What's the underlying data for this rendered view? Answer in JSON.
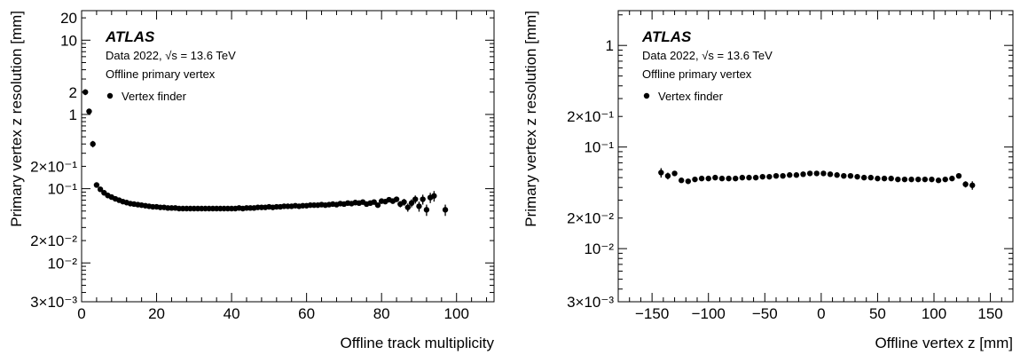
{
  "chart_data": [
    {
      "type": "scatter",
      "scale_y": "log",
      "xlim": [
        0,
        110
      ],
      "ylim": [
        0.003,
        25
      ],
      "xlabel": "Offline track multiplicity",
      "ylabel": "Primary vertex z resolution [mm]",
      "x_ticks": [
        {
          "value": 0,
          "label": "0"
        },
        {
          "value": 20,
          "label": "20"
        },
        {
          "value": 40,
          "label": "40"
        },
        {
          "value": 60,
          "label": "60"
        },
        {
          "value": 80,
          "label": "80"
        },
        {
          "value": 100,
          "label": "100"
        }
      ],
      "y_ticks": [
        {
          "value": 0.003,
          "label": "3×10⁻³"
        },
        {
          "value": 0.01,
          "label": "10⁻²"
        },
        {
          "value": 0.02,
          "label": "2×10⁻²"
        },
        {
          "value": 0.1,
          "label": "10⁻¹"
        },
        {
          "value": 0.2,
          "label": "2×10⁻¹"
        },
        {
          "value": 1,
          "label": "1"
        },
        {
          "value": 2,
          "label": "2"
        },
        {
          "value": 10,
          "label": "10"
        },
        {
          "value": 20,
          "label": "20"
        }
      ],
      "annotations": {
        "experiment": "ATLAS",
        "energy_line": "Data 2022, √s = 13.6 TeV",
        "selection": "Offline primary vertex"
      },
      "legend_position": "top-left",
      "series": [
        {
          "name": "Vertex finder",
          "points": [
            {
              "x": 1,
              "y": 2.0,
              "err": 0.18
            },
            {
              "x": 2,
              "y": 1.1,
              "err": 0.08
            },
            {
              "x": 3,
              "y": 0.4,
              "err": 0.04
            },
            {
              "x": 4,
              "y": 0.112,
              "err": 0.006
            },
            {
              "x": 5,
              "y": 0.098,
              "err": 0.005
            },
            {
              "x": 6,
              "y": 0.088,
              "err": 0.004
            },
            {
              "x": 7,
              "y": 0.081,
              "err": 0.003
            },
            {
              "x": 8,
              "y": 0.077,
              "err": 0.003
            },
            {
              "x": 9,
              "y": 0.073,
              "err": 0.002
            },
            {
              "x": 10,
              "y": 0.07,
              "err": 0.002
            },
            {
              "x": 11,
              "y": 0.067,
              "err": 0.002
            },
            {
              "x": 12,
              "y": 0.065,
              "err": 0.002
            },
            {
              "x": 13,
              "y": 0.063,
              "err": 0.002
            },
            {
              "x": 14,
              "y": 0.062,
              "err": 0.002
            },
            {
              "x": 15,
              "y": 0.061,
              "err": 0.002
            },
            {
              "x": 16,
              "y": 0.06,
              "err": 0.002
            },
            {
              "x": 17,
              "y": 0.059,
              "err": 0.002
            },
            {
              "x": 18,
              "y": 0.058,
              "err": 0.002
            },
            {
              "x": 19,
              "y": 0.057,
              "err": 0.002
            },
            {
              "x": 20,
              "y": 0.057,
              "err": 0.002
            },
            {
              "x": 21,
              "y": 0.056,
              "err": 0.002
            },
            {
              "x": 22,
              "y": 0.056,
              "err": 0.002
            },
            {
              "x": 23,
              "y": 0.055,
              "err": 0.002
            },
            {
              "x": 24,
              "y": 0.055,
              "err": 0.002
            },
            {
              "x": 25,
              "y": 0.055,
              "err": 0.002
            },
            {
              "x": 26,
              "y": 0.054,
              "err": 0.002
            },
            {
              "x": 27,
              "y": 0.054,
              "err": 0.002
            },
            {
              "x": 28,
              "y": 0.054,
              "err": 0.002
            },
            {
              "x": 29,
              "y": 0.054,
              "err": 0.002
            },
            {
              "x": 30,
              "y": 0.054,
              "err": 0.002
            },
            {
              "x": 31,
              "y": 0.054,
              "err": 0.002
            },
            {
              "x": 32,
              "y": 0.054,
              "err": 0.002
            },
            {
              "x": 33,
              "y": 0.054,
              "err": 0.002
            },
            {
              "x": 34,
              "y": 0.054,
              "err": 0.002
            },
            {
              "x": 35,
              "y": 0.054,
              "err": 0.002
            },
            {
              "x": 36,
              "y": 0.054,
              "err": 0.002
            },
            {
              "x": 37,
              "y": 0.054,
              "err": 0.002
            },
            {
              "x": 38,
              "y": 0.054,
              "err": 0.002
            },
            {
              "x": 39,
              "y": 0.054,
              "err": 0.002
            },
            {
              "x": 40,
              "y": 0.054,
              "err": 0.002
            },
            {
              "x": 41,
              "y": 0.054,
              "err": 0.002
            },
            {
              "x": 42,
              "y": 0.055,
              "err": 0.002
            },
            {
              "x": 43,
              "y": 0.054,
              "err": 0.002
            },
            {
              "x": 44,
              "y": 0.055,
              "err": 0.002
            },
            {
              "x": 45,
              "y": 0.055,
              "err": 0.002
            },
            {
              "x": 46,
              "y": 0.055,
              "err": 0.002
            },
            {
              "x": 47,
              "y": 0.056,
              "err": 0.002
            },
            {
              "x": 48,
              "y": 0.056,
              "err": 0.002
            },
            {
              "x": 49,
              "y": 0.056,
              "err": 0.002
            },
            {
              "x": 50,
              "y": 0.057,
              "err": 0.002
            },
            {
              "x": 51,
              "y": 0.056,
              "err": 0.002
            },
            {
              "x": 52,
              "y": 0.057,
              "err": 0.002
            },
            {
              "x": 53,
              "y": 0.057,
              "err": 0.002
            },
            {
              "x": 54,
              "y": 0.058,
              "err": 0.002
            },
            {
              "x": 55,
              "y": 0.058,
              "err": 0.002
            },
            {
              "x": 56,
              "y": 0.058,
              "err": 0.002
            },
            {
              "x": 57,
              "y": 0.059,
              "err": 0.002
            },
            {
              "x": 58,
              "y": 0.058,
              "err": 0.002
            },
            {
              "x": 59,
              "y": 0.059,
              "err": 0.002
            },
            {
              "x": 60,
              "y": 0.059,
              "err": 0.002
            },
            {
              "x": 61,
              "y": 0.06,
              "err": 0.002
            },
            {
              "x": 62,
              "y": 0.06,
              "err": 0.002
            },
            {
              "x": 63,
              "y": 0.06,
              "err": 0.002
            },
            {
              "x": 64,
              "y": 0.061,
              "err": 0.002
            },
            {
              "x": 65,
              "y": 0.06,
              "err": 0.002
            },
            {
              "x": 66,
              "y": 0.061,
              "err": 0.002
            },
            {
              "x": 67,
              "y": 0.062,
              "err": 0.002
            },
            {
              "x": 68,
              "y": 0.061,
              "err": 0.002
            },
            {
              "x": 69,
              "y": 0.063,
              "err": 0.002
            },
            {
              "x": 70,
              "y": 0.062,
              "err": 0.002
            },
            {
              "x": 71,
              "y": 0.064,
              "err": 0.003
            },
            {
              "x": 72,
              "y": 0.063,
              "err": 0.003
            },
            {
              "x": 73,
              "y": 0.065,
              "err": 0.003
            },
            {
              "x": 74,
              "y": 0.064,
              "err": 0.003
            },
            {
              "x": 75,
              "y": 0.066,
              "err": 0.003
            },
            {
              "x": 76,
              "y": 0.062,
              "err": 0.003
            },
            {
              "x": 77,
              "y": 0.064,
              "err": 0.003
            },
            {
              "x": 78,
              "y": 0.066,
              "err": 0.003
            },
            {
              "x": 79,
              "y": 0.06,
              "err": 0.004
            },
            {
              "x": 80,
              "y": 0.068,
              "err": 0.004
            },
            {
              "x": 81,
              "y": 0.067,
              "err": 0.004
            },
            {
              "x": 82,
              "y": 0.071,
              "err": 0.005
            },
            {
              "x": 83,
              "y": 0.068,
              "err": 0.005
            },
            {
              "x": 84,
              "y": 0.072,
              "err": 0.006
            },
            {
              "x": 85,
              "y": 0.062,
              "err": 0.006
            },
            {
              "x": 86,
              "y": 0.066,
              "err": 0.007
            },
            {
              "x": 87,
              "y": 0.056,
              "err": 0.007
            },
            {
              "x": 88,
              "y": 0.064,
              "err": 0.008
            },
            {
              "x": 89,
              "y": 0.072,
              "err": 0.009
            },
            {
              "x": 90,
              "y": 0.058,
              "err": 0.009
            },
            {
              "x": 91,
              "y": 0.072,
              "err": 0.011
            },
            {
              "x": 92,
              "y": 0.052,
              "err": 0.009
            },
            {
              "x": 93,
              "y": 0.076,
              "err": 0.012
            },
            {
              "x": 94,
              "y": 0.08,
              "err": 0.013
            },
            {
              "x": 97,
              "y": 0.052,
              "err": 0.009
            }
          ]
        }
      ]
    },
    {
      "type": "scatter",
      "scale_y": "log",
      "xlim": [
        -180,
        170
      ],
      "ylim": [
        0.003,
        2.2
      ],
      "xlabel": "Offline vertex z [mm]",
      "ylabel": "Primary vertex z resolution [mm]",
      "x_ticks": [
        {
          "value": -150,
          "label": "−150"
        },
        {
          "value": -100,
          "label": "−100"
        },
        {
          "value": -50,
          "label": "−50"
        },
        {
          "value": 0,
          "label": "0"
        },
        {
          "value": 50,
          "label": "50"
        },
        {
          "value": 100,
          "label": "100"
        },
        {
          "value": 150,
          "label": "150"
        }
      ],
      "y_ticks": [
        {
          "value": 0.003,
          "label": "3×10⁻³"
        },
        {
          "value": 0.01,
          "label": "10⁻²"
        },
        {
          "value": 0.02,
          "label": "2×10⁻²"
        },
        {
          "value": 0.1,
          "label": "10⁻¹"
        },
        {
          "value": 0.2,
          "label": "2×10⁻¹"
        },
        {
          "value": 1,
          "label": "1"
        }
      ],
      "annotations": {
        "experiment": "ATLAS",
        "energy_line": "Data 2022, √s = 13.6 TeV",
        "selection": "Offline primary vertex"
      },
      "legend_position": "top-left",
      "series": [
        {
          "name": "Vertex finder",
          "points": [
            {
              "x": -142,
              "y": 0.056,
              "err": 0.006
            },
            {
              "x": -136,
              "y": 0.052,
              "err": 0.004
            },
            {
              "x": -130,
              "y": 0.055,
              "err": 0.003
            },
            {
              "x": -124,
              "y": 0.047,
              "err": 0.002
            },
            {
              "x": -118,
              "y": 0.046,
              "err": 0.0015
            },
            {
              "x": -112,
              "y": 0.048,
              "err": 0.0015
            },
            {
              "x": -106,
              "y": 0.049,
              "err": 0.0015
            },
            {
              "x": -100,
              "y": 0.049,
              "err": 0.001
            },
            {
              "x": -94,
              "y": 0.05,
              "err": 0.001
            },
            {
              "x": -88,
              "y": 0.049,
              "err": 0.001
            },
            {
              "x": -82,
              "y": 0.049,
              "err": 0.001
            },
            {
              "x": -76,
              "y": 0.049,
              "err": 0.001
            },
            {
              "x": -70,
              "y": 0.05,
              "err": 0.001
            },
            {
              "x": -64,
              "y": 0.05,
              "err": 0.001
            },
            {
              "x": -58,
              "y": 0.05,
              "err": 0.001
            },
            {
              "x": -52,
              "y": 0.051,
              "err": 0.001
            },
            {
              "x": -46,
              "y": 0.051,
              "err": 0.001
            },
            {
              "x": -40,
              "y": 0.052,
              "err": 0.001
            },
            {
              "x": -34,
              "y": 0.052,
              "err": 0.001
            },
            {
              "x": -28,
              "y": 0.053,
              "err": 0.001
            },
            {
              "x": -22,
              "y": 0.053,
              "err": 0.001
            },
            {
              "x": -16,
              "y": 0.054,
              "err": 0.001
            },
            {
              "x": -10,
              "y": 0.055,
              "err": 0.001
            },
            {
              "x": -4,
              "y": 0.055,
              "err": 0.001
            },
            {
              "x": 2,
              "y": 0.055,
              "err": 0.001
            },
            {
              "x": 8,
              "y": 0.054,
              "err": 0.001
            },
            {
              "x": 14,
              "y": 0.053,
              "err": 0.001
            },
            {
              "x": 20,
              "y": 0.052,
              "err": 0.001
            },
            {
              "x": 26,
              "y": 0.052,
              "err": 0.001
            },
            {
              "x": 32,
              "y": 0.051,
              "err": 0.001
            },
            {
              "x": 38,
              "y": 0.05,
              "err": 0.001
            },
            {
              "x": 44,
              "y": 0.05,
              "err": 0.001
            },
            {
              "x": 50,
              "y": 0.049,
              "err": 0.001
            },
            {
              "x": 56,
              "y": 0.049,
              "err": 0.001
            },
            {
              "x": 62,
              "y": 0.049,
              "err": 0.001
            },
            {
              "x": 68,
              "y": 0.048,
              "err": 0.001
            },
            {
              "x": 74,
              "y": 0.048,
              "err": 0.001
            },
            {
              "x": 80,
              "y": 0.048,
              "err": 0.001
            },
            {
              "x": 86,
              "y": 0.048,
              "err": 0.001
            },
            {
              "x": 92,
              "y": 0.048,
              "err": 0.001
            },
            {
              "x": 98,
              "y": 0.048,
              "err": 0.0015
            },
            {
              "x": 104,
              "y": 0.047,
              "err": 0.0015
            },
            {
              "x": 110,
              "y": 0.048,
              "err": 0.0015
            },
            {
              "x": 116,
              "y": 0.049,
              "err": 0.002
            },
            {
              "x": 122,
              "y": 0.052,
              "err": 0.003
            },
            {
              "x": 128,
              "y": 0.043,
              "err": 0.003
            },
            {
              "x": 134,
              "y": 0.042,
              "err": 0.004
            }
          ]
        }
      ]
    }
  ]
}
